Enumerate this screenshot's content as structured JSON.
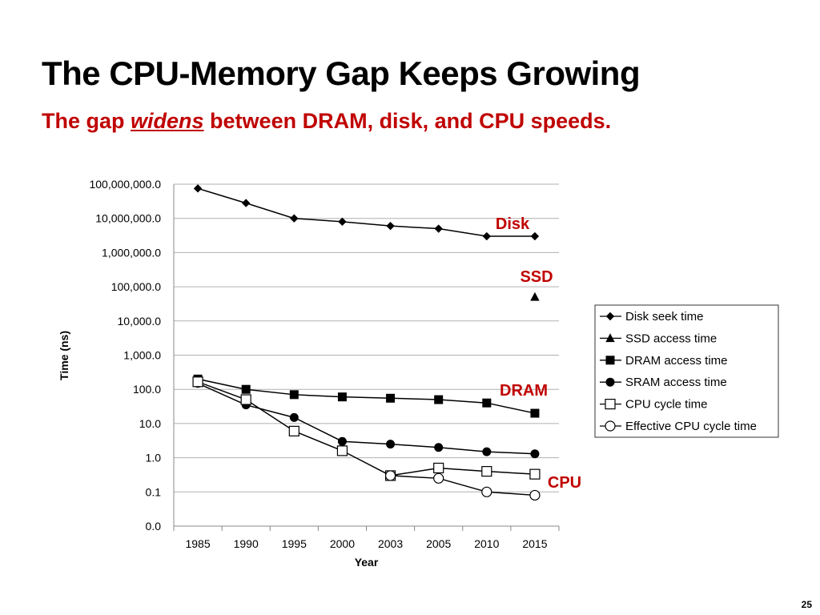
{
  "slide": {
    "title": "The CPU-Memory Gap Keeps Growing",
    "subtitle_pre": "The gap ",
    "subtitle_em": "widens",
    "subtitle_post": " between DRAM, disk, and CPU speeds.",
    "page_number": "25"
  },
  "colors": {
    "accent": "#c00000",
    "series": "#000000",
    "grid": "#b0b0b0"
  },
  "chart_data": {
    "type": "line",
    "log_scale_y": true,
    "grid": "horizontal",
    "legend_position": "right",
    "xlabel": "Year",
    "ylabel": "Time (ns)",
    "categories": [
      "1985",
      "1990",
      "1995",
      "2000",
      "2003",
      "2005",
      "2010",
      "2015"
    ],
    "ylim": [
      0.01,
      100000000
    ],
    "y_ticks": [
      0.01,
      0.1,
      1,
      10,
      100,
      1000,
      10000,
      100000,
      1000000,
      10000000,
      100000000
    ],
    "y_tick_labels": [
      "0.0",
      "0.1",
      "1.0",
      "10.0",
      "100.0",
      "1,000.0",
      "10,000.0",
      "100,000.0",
      "1,000,000.0",
      "10,000,000.0",
      "100,000,000.0"
    ],
    "series": [
      {
        "name": "Disk seek time",
        "marker": "diamond",
        "values": [
          75000000,
          28000000,
          10000000,
          8000000,
          6000000,
          5000000,
          3000000,
          3000000
        ]
      },
      {
        "name": "SSD access time",
        "marker": "triangle",
        "values": [
          null,
          null,
          null,
          null,
          null,
          null,
          null,
          50000
        ]
      },
      {
        "name": "DRAM access time",
        "marker": "square",
        "values": [
          200,
          100,
          70,
          60,
          55,
          50,
          40,
          20
        ]
      },
      {
        "name": "SRAM access time",
        "marker": "circle",
        "values": [
          150,
          35,
          15,
          3,
          2.5,
          2,
          1.5,
          1.3
        ]
      },
      {
        "name": "CPU cycle time",
        "marker": "square-open",
        "values": [
          166,
          50,
          6,
          1.6,
          0.3,
          0.5,
          0.4,
          0.33
        ]
      },
      {
        "name": "Effective CPU cycle time",
        "marker": "circle-open",
        "values": [
          null,
          null,
          null,
          null,
          0.3,
          0.25,
          0.1,
          0.08
        ]
      }
    ],
    "annotations": [
      {
        "text": "Disk"
      },
      {
        "text": "SSD"
      },
      {
        "text": "DRAM"
      },
      {
        "text": "CPU"
      }
    ]
  }
}
